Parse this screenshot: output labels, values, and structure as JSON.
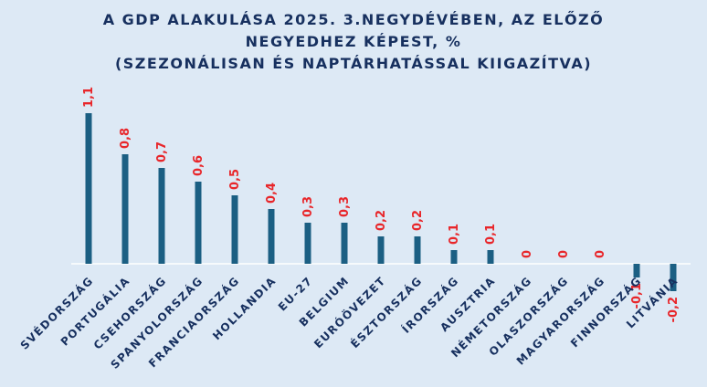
{
  "chart_data": {
    "type": "bar",
    "title": [
      "A GDP ALAKULÁSA 2025. 3.NEGYDÉVÉBEN, AZ ELŐZŐ",
      "NEGYEDHEZ KÉPEST, %",
      "(SZEZONÁLISAN ÉS NAPTÁRHATÁSSAL KIIGAZÍTVA)"
    ],
    "categories": [
      "SVÉDORSZÁG",
      "PORTUGÁLIA",
      "CSEHORSZÁG",
      "SPANYOLORSZÁG",
      "FRANCIAORSZÁG",
      "HOLLANDIA",
      "EU-27",
      "BELGIUM",
      "EURÓÖVEZET",
      "ÉSZTORSZÁG",
      "ÍRORSZÁG",
      "AUSZTRIA",
      "NÉMETORSZÁG",
      "OLASZORSZÁG",
      "MAGYARORSZÁG",
      "FINNORSZÁG",
      "LITVÁNIA"
    ],
    "values": [
      1.1,
      0.8,
      0.7,
      0.6,
      0.5,
      0.4,
      0.3,
      0.3,
      0.2,
      0.2,
      0.1,
      0.1,
      0,
      0,
      0,
      -0.1,
      -0.2
    ],
    "data_labels": [
      "1,1",
      "0,8",
      "0,7",
      "0,6",
      "0,5",
      "0,4",
      "0,3",
      "0,3",
      "0,2",
      "0,2",
      "0,1",
      "0,1",
      "0",
      "0",
      "0",
      "-0,1",
      "-0,2"
    ],
    "ylim": [
      -0.2,
      1.1
    ],
    "grid": false,
    "colors": {
      "bar": "#1b5f83",
      "label": "#e8262a",
      "axis": "#ffffff",
      "text": "#17305f",
      "background": "#dde9f5"
    }
  }
}
